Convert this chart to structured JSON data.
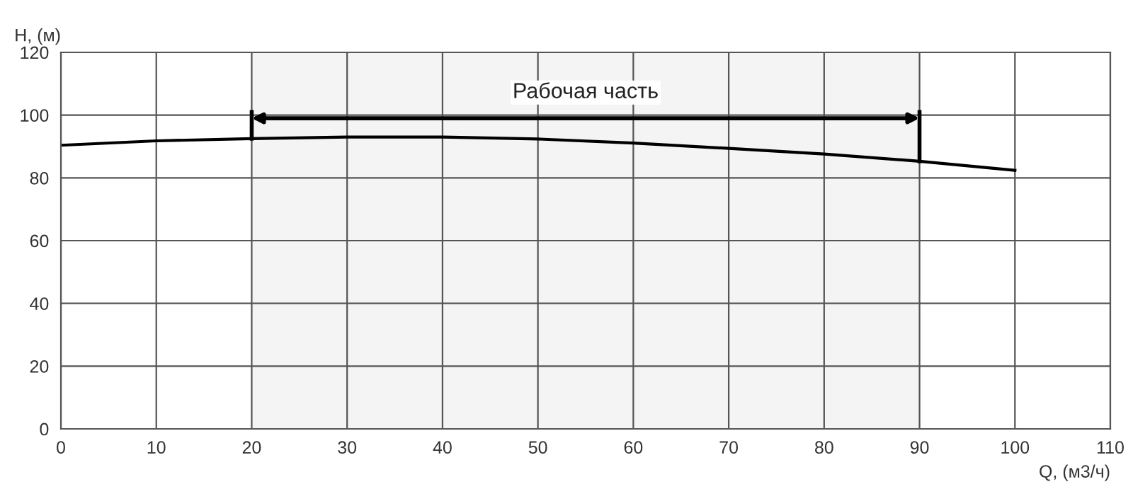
{
  "chart_data": {
    "type": "line",
    "xlabel": "Q, (м3/ч)",
    "ylabel": "H, (м)",
    "x": [
      0,
      10,
      20,
      30,
      40,
      50,
      60,
      70,
      80,
      90,
      100
    ],
    "series": [
      {
        "color": "#000000",
        "values": [
          90.4,
          91.8,
          92.5,
          93,
          93,
          92.4,
          91.1,
          89.4,
          87.6,
          85.3,
          82.4
        ]
      }
    ],
    "xlim": [
      0,
      110
    ],
    "xticks": [
      0,
      10,
      20,
      30,
      40,
      50,
      60,
      70,
      80,
      90,
      100,
      110
    ],
    "ylim": [
      0,
      120
    ],
    "yticks": [
      0,
      20,
      40,
      60,
      80,
      100,
      120
    ],
    "grid": true,
    "marker": "none",
    "line_style": "solid",
    "bands": [
      {
        "axis": "x",
        "from": 20,
        "to": 90,
        "label": "Рабочая часть",
        "color": "#f4f4f4"
      }
    ]
  }
}
